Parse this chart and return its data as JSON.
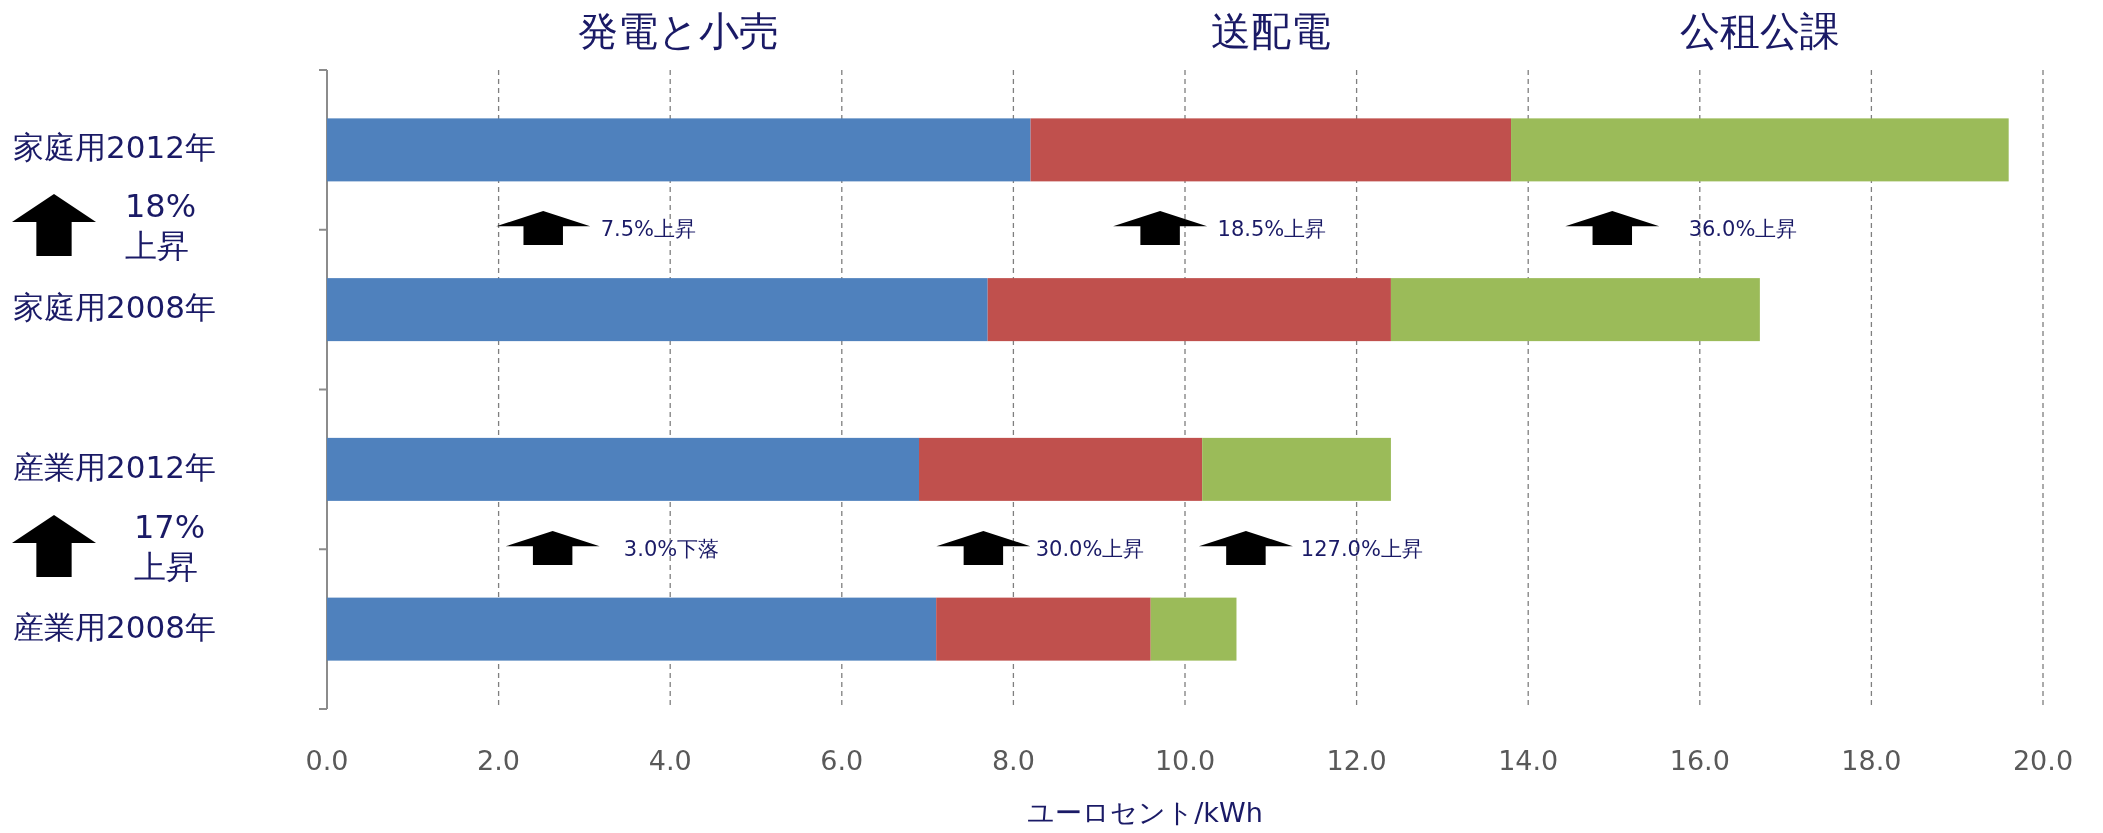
{
  "chart_data": {
    "type": "bar",
    "orientation": "horizontal",
    "stacked": true,
    "categories": [
      "家庭用2012年",
      "家庭用2008年",
      "産業用2012年",
      "産業用2008年"
    ],
    "series": [
      {
        "name": "発電と小売",
        "color": "#4f81bd",
        "values": [
          8.2,
          7.7,
          6.9,
          7.1
        ]
      },
      {
        "name": "送配電",
        "color": "#c0504d",
        "values": [
          5.6,
          4.7,
          3.3,
          2.5
        ]
      },
      {
        "name": "公租公課",
        "color": "#9bbb59",
        "values": [
          5.8,
          4.3,
          2.2,
          1.0
        ]
      }
    ],
    "xlabel": "ユーロセント/kWh",
    "xlim": [
      0,
      20
    ],
    "xticks": [
      {
        "value": 0,
        "label": "0.0"
      },
      {
        "value": 2,
        "label": "2.0"
      },
      {
        "value": 4,
        "label": "4.0"
      },
      {
        "value": 6,
        "label": "6.0"
      },
      {
        "value": 8,
        "label": "8.0"
      },
      {
        "value": 10,
        "label": "10.0"
      },
      {
        "value": 12,
        "label": "12.0"
      },
      {
        "value": 14,
        "label": "14.0"
      },
      {
        "value": 16,
        "label": "16.0"
      },
      {
        "value": 18,
        "label": "18.0"
      },
      {
        "value": 20,
        "label": "20.0"
      }
    ],
    "grid": "x",
    "legend": false,
    "annotations": [
      "18% 上昇",
      "17% 上昇",
      "7.5%上昇",
      "18.5%上昇",
      "36.0%上昇",
      "3.0%下落",
      "30.0%上昇",
      "127.0%上昇"
    ]
  }
}
